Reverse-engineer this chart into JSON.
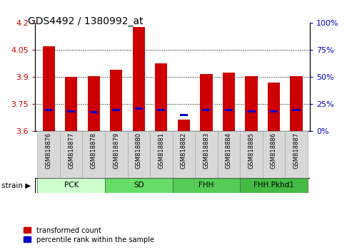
{
  "title": "GDS4492 / 1380992_at",
  "samples": [
    "GSM818876",
    "GSM818877",
    "GSM818878",
    "GSM818879",
    "GSM818880",
    "GSM818881",
    "GSM818882",
    "GSM818883",
    "GSM818884",
    "GSM818885",
    "GSM818886",
    "GSM818887"
  ],
  "red_values": [
    4.07,
    3.9,
    3.905,
    3.94,
    4.175,
    3.975,
    3.665,
    3.915,
    3.925,
    3.905,
    3.87,
    3.905
  ],
  "blue_values": [
    3.715,
    3.71,
    3.705,
    3.715,
    3.725,
    3.715,
    3.69,
    3.715,
    3.715,
    3.71,
    3.71,
    3.715
  ],
  "ymin": 3.6,
  "ymax": 4.2,
  "yticks_left": [
    3.6,
    3.75,
    3.9,
    4.05,
    4.2
  ],
  "yticks_right": [
    0,
    25,
    50,
    75,
    100
  ],
  "bar_color": "#cc0000",
  "blue_color": "#0000cc",
  "groups": [
    {
      "label": "PCK",
      "start": 0,
      "end": 2,
      "color": "#ccffcc"
    },
    {
      "label": "SD",
      "start": 3,
      "end": 5,
      "color": "#66dd66"
    },
    {
      "label": "FHH",
      "start": 6,
      "end": 8,
      "color": "#55cc55"
    },
    {
      "label": "FHH.Pkhd1",
      "start": 9,
      "end": 11,
      "color": "#44bb44"
    }
  ],
  "strain_label": "strain",
  "legend_red": "transformed count",
  "legend_blue": "percentile rank within the sample",
  "bar_width": 0.55,
  "tick_color_left": "#cc0000",
  "tick_color_right": "#0000cc",
  "grid_color": "#000000",
  "bg_color": "#ffffff",
  "plot_bg": "#ffffff",
  "label_bg": "#d8d8d8",
  "label_edge": "#aaaaaa"
}
